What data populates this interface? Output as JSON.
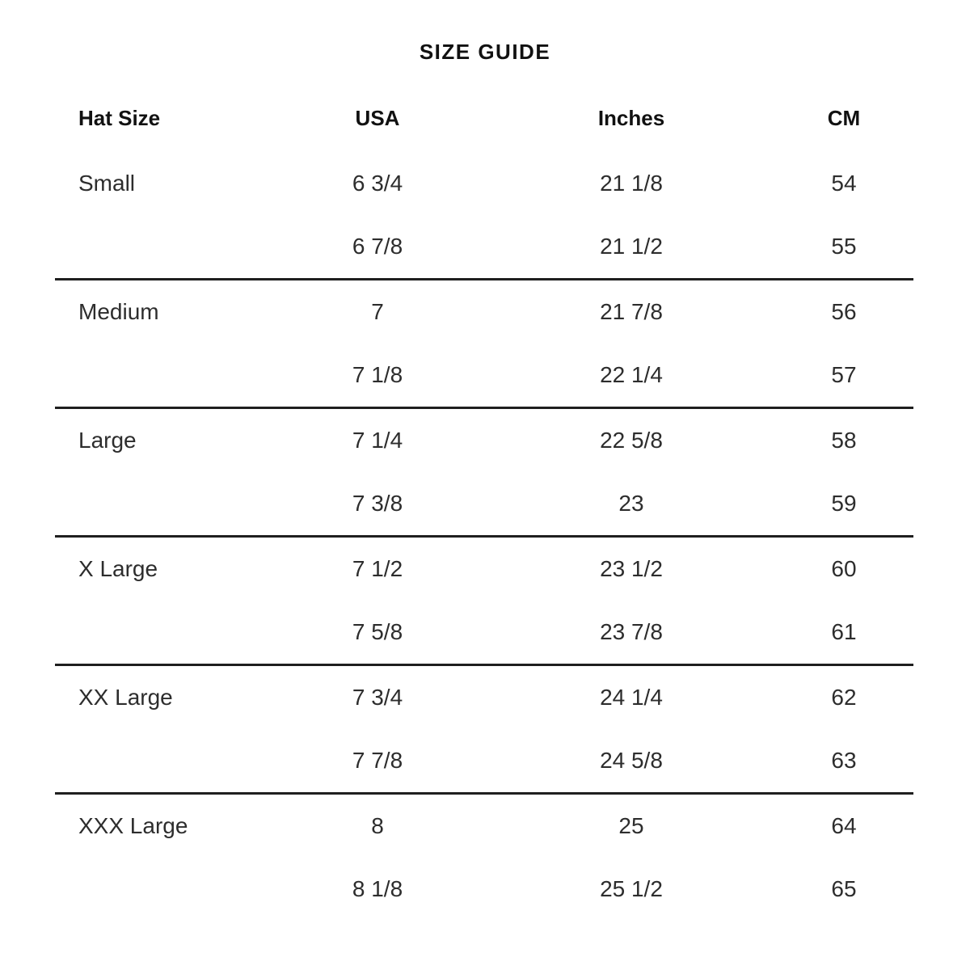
{
  "title": "SIZE GUIDE",
  "table": {
    "headers": {
      "hat_size": "Hat Size",
      "usa": "USA",
      "inches": "Inches",
      "cm": "CM"
    },
    "groups": [
      {
        "name": "Small",
        "rows": [
          {
            "usa": "6 3/4",
            "inches": "21 1/8",
            "cm": "54"
          },
          {
            "usa": "6 7/8",
            "inches": "21 1/2",
            "cm": "55"
          }
        ]
      },
      {
        "name": "Medium",
        "rows": [
          {
            "usa": "7",
            "inches": "21 7/8",
            "cm": "56"
          },
          {
            "usa": "7 1/8",
            "inches": "22 1/4",
            "cm": "57"
          }
        ]
      },
      {
        "name": "Large",
        "rows": [
          {
            "usa": "7 1/4",
            "inches": "22 5/8",
            "cm": "58"
          },
          {
            "usa": "7 3/8",
            "inches": "23",
            "cm": "59"
          }
        ]
      },
      {
        "name": "X Large",
        "rows": [
          {
            "usa": "7 1/2",
            "inches": "23 1/2",
            "cm": "60"
          },
          {
            "usa": "7 5/8",
            "inches": "23 7/8",
            "cm": "61"
          }
        ]
      },
      {
        "name": "XX Large",
        "rows": [
          {
            "usa": "7 3/4",
            "inches": "24 1/4",
            "cm": "62"
          },
          {
            "usa": "7 7/8",
            "inches": "24 5/8",
            "cm": "63"
          }
        ]
      },
      {
        "name": "XXX Large",
        "rows": [
          {
            "usa": "8",
            "inches": "25",
            "cm": "64"
          },
          {
            "usa": "8 1/8",
            "inches": "25 1/2",
            "cm": "65"
          }
        ]
      }
    ]
  },
  "colors": {
    "background": "#ffffff",
    "header_text": "#111111",
    "data_text": "#2d2d2d",
    "divider": "#1f1f1f"
  }
}
